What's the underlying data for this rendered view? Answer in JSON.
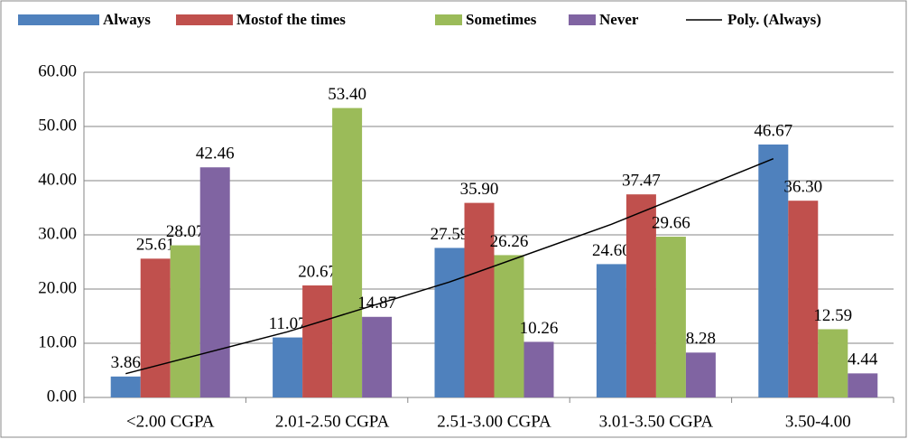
{
  "chart_data": {
    "type": "bar",
    "categories": [
      "<2.00 CGPA",
      "2.01-2.50 CGPA",
      "2.51-3.00 CGPA",
      "3.01-3.50 CGPA",
      "3.50-4.00"
    ],
    "series": [
      {
        "name": "Always",
        "color": "#4f81bd",
        "values": [
          3.86,
          11.07,
          27.59,
          24.6,
          46.67
        ],
        "value_labels": [
          "3.86",
          "11.07",
          "27.59",
          "24.60",
          "46.67"
        ]
      },
      {
        "name": "Mostof the times",
        "color": "#c0504d",
        "values": [
          25.61,
          20.67,
          35.9,
          37.47,
          36.3
        ],
        "value_labels": [
          "25.61",
          "20.67",
          "35.90",
          "37.47",
          "36.30"
        ]
      },
      {
        "name": "Sometimes",
        "color": "#9bbb59",
        "values": [
          28.07,
          53.4,
          26.26,
          29.66,
          12.59
        ],
        "value_labels": [
          "28.07",
          "53.40",
          "26.26",
          "29.66",
          "12.59"
        ]
      },
      {
        "name": "Never",
        "color": "#8064a2",
        "values": [
          42.46,
          14.87,
          10.26,
          8.28,
          4.44
        ],
        "value_labels": [
          "42.46",
          "14.87",
          "10.26",
          "8.28",
          "4.44"
        ]
      }
    ],
    "trendline": {
      "name": "Poly. (Always)",
      "color": "#000000"
    },
    "ylim": [
      0,
      60
    ],
    "yticks": [
      {
        "value": 0,
        "label": "0.00"
      },
      {
        "value": 10,
        "label": "10.00"
      },
      {
        "value": 20,
        "label": "20.00"
      },
      {
        "value": 30,
        "label": "30.00"
      },
      {
        "value": 40,
        "label": "40.00"
      },
      {
        "value": 50,
        "label": "50.00"
      },
      {
        "value": 60,
        "label": "60.00"
      }
    ],
    "grid": true,
    "legend": "top"
  }
}
